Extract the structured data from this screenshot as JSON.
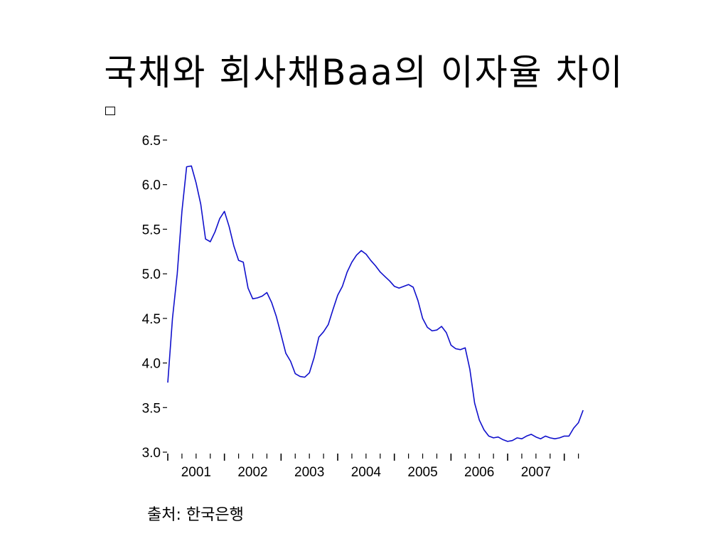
{
  "slide": {
    "title": "국채와 회사채Baa의 이자율 차이",
    "source": "출처: 한국은행"
  },
  "chart_data": {
    "type": "line",
    "title": "국채와 회사채Baa의 이자율 차이",
    "xlabel": "",
    "ylabel": "",
    "ylim": [
      3.0,
      6.5
    ],
    "yticks": [
      "3.0",
      "3.5",
      "4.0",
      "4.5",
      "5.0",
      "5.5",
      "6.0",
      "6.5"
    ],
    "xlim": [
      2000.0,
      2007.33
    ],
    "xtick_labels": [
      "2001",
      "2002",
      "2003",
      "2004",
      "2005",
      "2006",
      "2007"
    ],
    "grid": false,
    "line_color": "#1010cc",
    "series": [
      {
        "x": [
          2000.0,
          2000.083,
          2000.167,
          2000.25,
          2000.333,
          2000.417,
          2000.5,
          2000.583,
          2000.667,
          2000.75,
          2000.833,
          2000.917,
          2001.0,
          2001.083,
          2001.167,
          2001.25,
          2001.333,
          2001.417,
          2001.5,
          2001.583,
          2001.667,
          2001.75,
          2001.833,
          2001.917,
          2002.0,
          2002.083,
          2002.167,
          2002.25,
          2002.333,
          2002.417,
          2002.5,
          2002.583,
          2002.667,
          2002.75,
          2002.833,
          2002.917,
          2003.0,
          2003.083,
          2003.167,
          2003.25,
          2003.333,
          2003.417,
          2003.5,
          2003.583,
          2003.667,
          2003.75,
          2003.833,
          2003.917,
          2004.0,
          2004.083,
          2004.167,
          2004.25,
          2004.333,
          2004.417,
          2004.5,
          2004.583,
          2004.667,
          2004.75,
          2004.833,
          2004.917,
          2005.0,
          2005.083,
          2005.167,
          2005.25,
          2005.333,
          2005.417,
          2005.5,
          2005.583,
          2005.667,
          2005.75,
          2005.833,
          2005.917,
          2006.0,
          2006.083,
          2006.167,
          2006.25,
          2006.333,
          2006.417,
          2006.5,
          2006.583,
          2006.667,
          2006.75,
          2006.833,
          2006.917,
          2007.0,
          2007.083,
          2007.167,
          2007.25,
          2007.333
        ],
        "values": [
          3.78,
          4.5,
          5.0,
          5.7,
          6.2,
          6.21,
          6.02,
          5.78,
          5.39,
          5.36,
          5.47,
          5.62,
          5.7,
          5.53,
          5.31,
          5.15,
          5.13,
          4.84,
          4.72,
          4.73,
          4.75,
          4.79,
          4.68,
          4.52,
          4.32,
          4.11,
          4.02,
          3.88,
          3.85,
          3.84,
          3.89,
          4.06,
          4.29,
          4.35,
          4.43,
          4.6,
          4.76,
          4.86,
          5.02,
          5.13,
          5.21,
          5.26,
          5.22,
          5.15,
          5.09,
          5.02,
          4.97,
          4.92,
          4.86,
          4.84,
          4.86,
          4.88,
          4.85,
          4.7,
          4.5,
          4.4,
          4.36,
          4.37,
          4.41,
          4.34,
          4.2,
          4.16,
          4.15,
          4.17,
          3.93,
          3.55,
          3.36,
          3.25,
          3.18,
          3.16,
          3.17,
          3.14,
          3.12,
          3.13,
          3.16,
          3.15,
          3.18,
          3.2,
          3.17,
          3.15,
          3.18,
          3.16,
          3.15,
          3.16,
          3.18,
          3.18,
          3.27,
          3.33,
          3.47
        ]
      }
    ]
  }
}
